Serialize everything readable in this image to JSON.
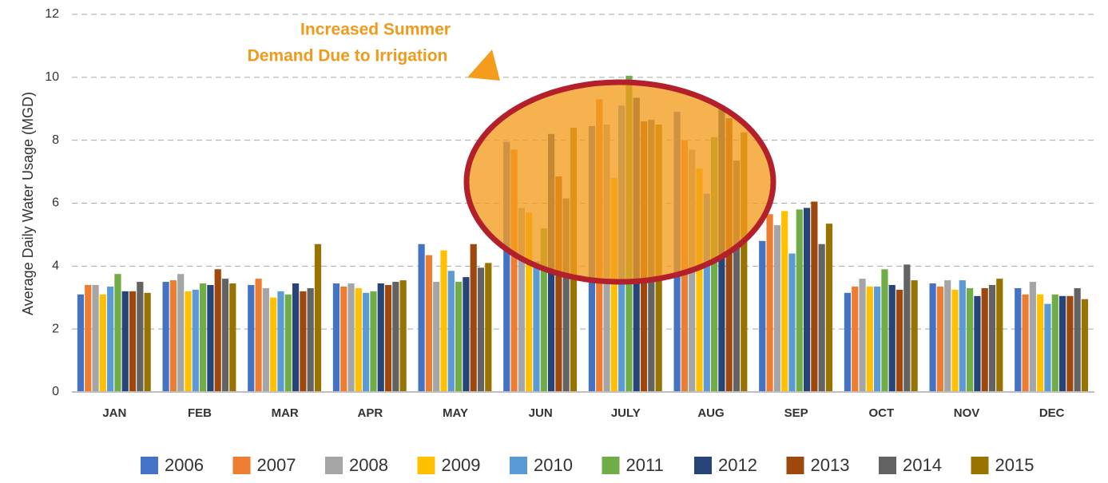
{
  "chart_data": {
    "type": "bar",
    "y_label": "Average Daily Water Usage (MGD)",
    "annotation": [
      "Increased Summer",
      "Demand Due to Irrigation"
    ],
    "categories": [
      "JAN",
      "FEB",
      "MAR",
      "APR",
      "MAY",
      "JUN",
      "JULY",
      "AUG",
      "SEP",
      "OCT",
      "NOV",
      "DEC"
    ],
    "ylim": [
      0,
      12
    ],
    "yticks": [
      0,
      2,
      4,
      6,
      8,
      10,
      12
    ],
    "grid": true,
    "legend": "bottom",
    "series": [
      {
        "name": "2006",
        "color": "#4472c4",
        "values": [
          3.1,
          3.5,
          3.4,
          3.45,
          4.7,
          7.95,
          8.45,
          8.9,
          4.8,
          3.15,
          3.45,
          3.3
        ]
      },
      {
        "name": "2007",
        "color": "#ed7d31",
        "values": [
          3.4,
          3.55,
          3.6,
          3.35,
          4.35,
          7.7,
          9.3,
          8.0,
          5.65,
          3.35,
          3.35,
          3.1
        ]
      },
      {
        "name": "2008",
        "color": "#a5a5a5",
        "values": [
          3.4,
          3.75,
          3.3,
          3.45,
          3.5,
          5.85,
          8.5,
          7.7,
          5.3,
          3.6,
          3.55,
          3.5
        ]
      },
      {
        "name": "2009",
        "color": "#ffc000",
        "values": [
          3.1,
          3.2,
          3.0,
          3.3,
          4.5,
          5.7,
          6.8,
          7.1,
          5.75,
          3.35,
          3.25,
          3.1
        ]
      },
      {
        "name": "2010",
        "color": "#5b9bd5",
        "values": [
          3.35,
          3.25,
          3.2,
          3.15,
          3.85,
          4.15,
          9.1,
          6.3,
          4.4,
          3.35,
          3.55,
          2.8
        ]
      },
      {
        "name": "2011",
        "color": "#70ad47",
        "values": [
          3.75,
          3.45,
          3.1,
          3.2,
          3.5,
          5.2,
          10.05,
          8.1,
          5.8,
          3.9,
          3.3,
          3.1
        ]
      },
      {
        "name": "2012",
        "color": "#264478",
        "values": [
          3.2,
          3.4,
          3.45,
          3.45,
          3.65,
          8.2,
          9.35,
          9.1,
          5.85,
          3.4,
          3.05,
          3.05
        ]
      },
      {
        "name": "2013",
        "color": "#9e480e",
        "values": [
          3.2,
          3.9,
          3.2,
          3.4,
          4.7,
          6.85,
          8.6,
          8.7,
          6.05,
          3.25,
          3.3,
          3.05
        ]
      },
      {
        "name": "2014",
        "color": "#636363",
        "values": [
          3.5,
          3.6,
          3.3,
          3.5,
          3.95,
          6.15,
          8.65,
          7.35,
          4.7,
          4.05,
          3.4,
          3.3
        ]
      },
      {
        "name": "2015",
        "color": "#997300",
        "values": [
          3.15,
          3.45,
          4.7,
          3.55,
          4.1,
          8.4,
          8.5,
          8.25,
          5.35,
          3.55,
          3.6,
          2.95
        ]
      }
    ]
  }
}
